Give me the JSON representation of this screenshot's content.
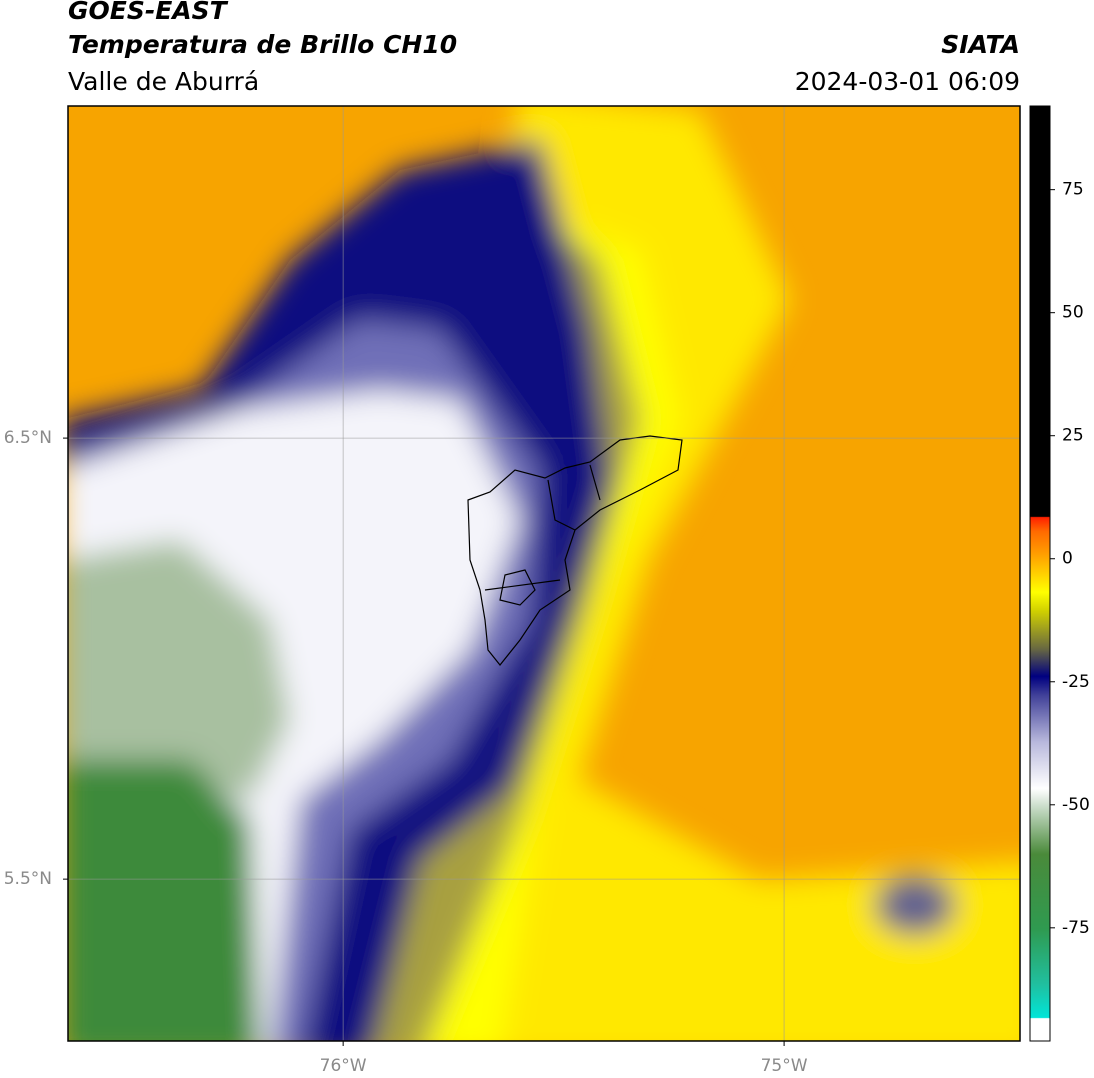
{
  "header": {
    "line1": "GOES-EAST",
    "line2": "Temperatura de Brillo CH10",
    "line3": "Valle de Aburrá",
    "source": "SIATA",
    "datetime": "2024-03-01 06:09"
  },
  "map": {
    "lon_range": [
      -76.624,
      -74.465
    ],
    "lat_range": [
      5.133,
      7.253
    ],
    "lon_ticks": [
      {
        "value": -76,
        "label": "76°W"
      },
      {
        "value": -75,
        "label": "75°W"
      }
    ],
    "lat_ticks": [
      {
        "value": 6.5,
        "label": "6.5°N"
      },
      {
        "value": 5.5,
        "label": "5.5°N"
      }
    ]
  },
  "colorbar": {
    "clim": [
      -98,
      92
    ],
    "ticks": [
      75,
      50,
      25,
      0,
      -25,
      -50,
      -75
    ]
  }
}
